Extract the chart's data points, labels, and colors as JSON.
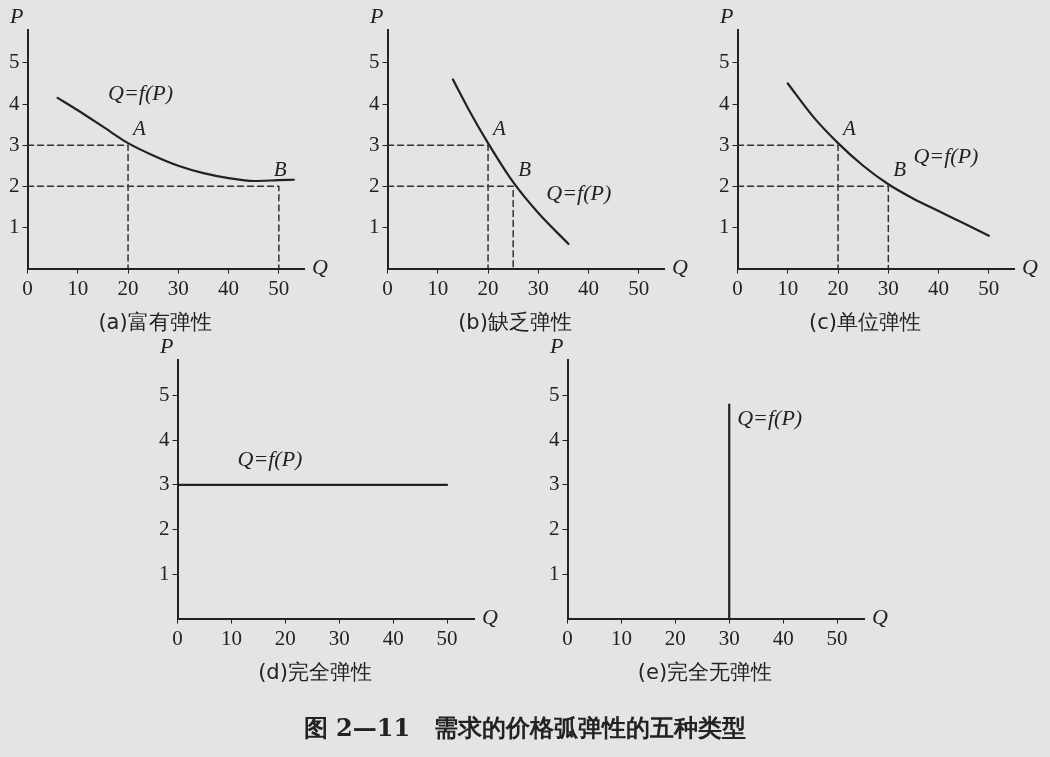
{
  "chart_data": [
    {
      "type": "line",
      "title": "(a)富有弹性",
      "xlabel": "Q",
      "ylabel": "P",
      "xlim": [
        0,
        55
      ],
      "ylim": [
        0,
        5.8
      ],
      "xticks": [
        0,
        10,
        20,
        30,
        40,
        50
      ],
      "yticks": [
        1,
        2,
        3,
        4,
        5
      ],
      "legend": false,
      "grid": false,
      "series": [
        {
          "name": "Q=f(P)",
          "color": "#222222",
          "x": [
            6,
            10,
            15,
            20,
            25,
            30,
            35,
            40,
            45,
            50,
            53
          ],
          "values": [
            4.15,
            3.85,
            3.45,
            3.05,
            2.75,
            2.5,
            2.32,
            2.2,
            2.13,
            2.15,
            2.16
          ]
        },
        {
          "color": "#333333",
          "line_style": "dashed",
          "x": [
            0,
            20,
            20
          ],
          "values": [
            3,
            3,
            0
          ]
        },
        {
          "color": "#333333",
          "line_style": "dashed",
          "x": [
            0,
            50,
            50
          ],
          "values": [
            2,
            2,
            0
          ]
        }
      ],
      "annotations": [
        {
          "text": "A",
          "x": 20,
          "y": 3
        },
        {
          "text": "B",
          "x": 48,
          "y": 2
        }
      ]
    },
    {
      "type": "line",
      "title": "(b)缺乏弹性",
      "xlabel": "Q",
      "ylabel": "P",
      "xlim": [
        0,
        55
      ],
      "ylim": [
        0,
        5.8
      ],
      "xticks": [
        0,
        10,
        20,
        30,
        40,
        50
      ],
      "yticks": [
        1,
        2,
        3,
        4,
        5
      ],
      "legend": false,
      "grid": false,
      "series": [
        {
          "name": "Q=f(P)",
          "color": "#222222",
          "x": [
            13,
            16,
            20,
            25,
            30,
            36
          ],
          "values": [
            4.6,
            3.9,
            3.05,
            2.1,
            1.35,
            0.6
          ]
        },
        {
          "color": "#333333",
          "line_style": "dashed",
          "x": [
            0,
            20,
            20
          ],
          "values": [
            3,
            3,
            0
          ]
        },
        {
          "color": "#333333",
          "line_style": "dashed",
          "x": [
            0,
            25,
            25
          ],
          "values": [
            2,
            2,
            0
          ]
        }
      ],
      "annotations": [
        {
          "text": "A",
          "x": 20,
          "y": 3
        },
        {
          "text": "B",
          "x": 25,
          "y": 2
        }
      ]
    },
    {
      "type": "line",
      "title": "(c)单位弹性",
      "xlabel": "Q",
      "ylabel": "P",
      "xlim": [
        0,
        55
      ],
      "ylim": [
        0,
        5.8
      ],
      "xticks": [
        0,
        10,
        20,
        30,
        40,
        50
      ],
      "yticks": [
        1,
        2,
        3,
        4,
        5
      ],
      "legend": false,
      "grid": false,
      "series": [
        {
          "name": "Q=f(P)",
          "color": "#222222",
          "x": [
            10,
            15,
            20,
            25,
            30,
            35,
            40,
            45,
            50
          ],
          "values": [
            4.5,
            3.7,
            3.05,
            2.5,
            2.05,
            1.7,
            1.4,
            1.1,
            0.8
          ]
        },
        {
          "color": "#333333",
          "line_style": "dashed",
          "x": [
            0,
            20,
            20
          ],
          "values": [
            3,
            3,
            0
          ]
        },
        {
          "color": "#333333",
          "line_style": "dashed",
          "x": [
            0,
            30,
            30
          ],
          "values": [
            2,
            2,
            0
          ]
        }
      ],
      "annotations": [
        {
          "text": "A",
          "x": 20,
          "y": 3
        },
        {
          "text": "B",
          "x": 30,
          "y": 2
        }
      ]
    },
    {
      "type": "line",
      "title": "(d)完全弹性",
      "xlabel": "Q",
      "ylabel": "P",
      "xlim": [
        0,
        55
      ],
      "ylim": [
        0,
        5.8
      ],
      "xticks": [
        0,
        10,
        20,
        30,
        40,
        50
      ],
      "yticks": [
        1,
        2,
        3,
        4,
        5
      ],
      "legend": false,
      "grid": false,
      "series": [
        {
          "name": "Q=f(P)",
          "color": "#222222",
          "x": [
            0,
            50
          ],
          "values": [
            3,
            3
          ]
        }
      ]
    },
    {
      "type": "line",
      "title": "(e)完全无弹性",
      "xlabel": "Q",
      "ylabel": "P",
      "xlim": [
        0,
        55
      ],
      "ylim": [
        0,
        5.8
      ],
      "xticks": [
        0,
        10,
        20,
        30,
        40,
        50
      ],
      "yticks": [
        1,
        2,
        3,
        4,
        5
      ],
      "legend": false,
      "grid": false,
      "series": [
        {
          "name": "Q=f(P)",
          "color": "#222222",
          "x": [
            30,
            30
          ],
          "values": [
            0,
            4.8
          ]
        }
      ]
    },
    {
      "type": "other",
      "title": "图 2—11　需求的价格弧弹性的五种类型"
    }
  ]
}
